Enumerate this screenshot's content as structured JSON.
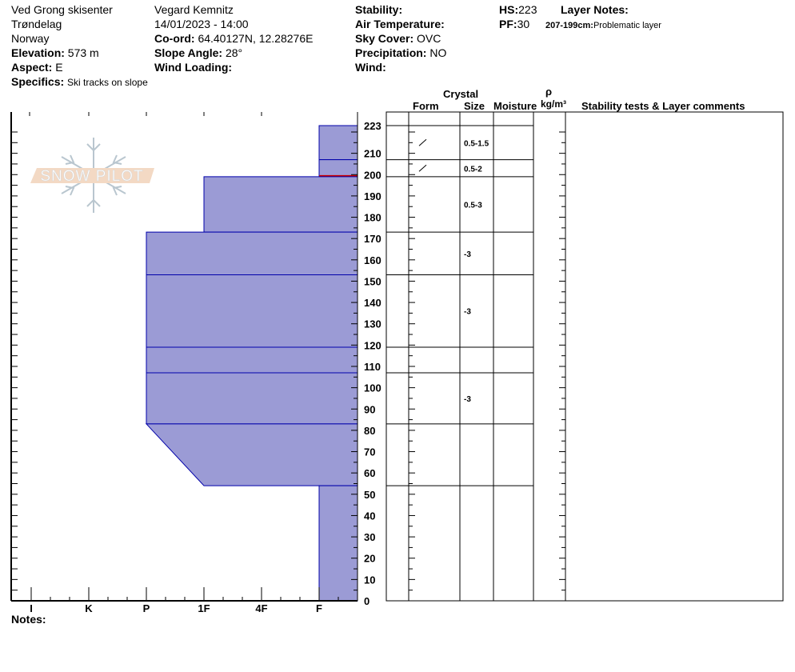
{
  "header": {
    "location": "Ved Grong skisenter",
    "region": "Trøndelag",
    "country": "Norway",
    "elevation_label": "Elevation:",
    "elevation": "573 m",
    "aspect_label": "Aspect:",
    "aspect": "E",
    "specifics_label": "Specifics:",
    "specifics": "Ski tracks on slope",
    "observer": "Vegard Kemnitz",
    "datetime": "14/01/2023 - 14:00",
    "coord_label": "Co-ord:",
    "coord": "64.40127N, 12.28276E",
    "slope_label": "Slope Angle:",
    "slope": "28°",
    "wind_loading_label": "Wind Loading:",
    "stability_label": "Stability:",
    "air_temp_label": "Air Temperature:",
    "sky_label": "Sky Cover:",
    "sky": "OVC",
    "precip_label": "Precipitation:",
    "precip": "NO",
    "wind_label": "Wind:",
    "hs_label": "HS:",
    "hs": "223",
    "pf_label": "PF:",
    "pf": "30",
    "layer_notes_label": "Layer Notes:",
    "layer_note_range": "207-199cm:",
    "layer_note_text": "Problematic layer"
  },
  "table_headers": {
    "crystal": "Crystal",
    "form": "Form",
    "size": "Size",
    "moisture": "Moisture",
    "rho": "ρ",
    "density_unit": "kg/m³",
    "comments": "Stability tests & Layer comments"
  },
  "notes_label": "Notes:",
  "logo_text": "SNOW PILOT",
  "colors": {
    "layer_fill": "#9b9bd5",
    "layer_edge": "#0000aa",
    "problem_layer": "#cc0000"
  },
  "chart_data": {
    "type": "bar",
    "orientation": "horizontal",
    "ylabel": "",
    "ylim": [
      0,
      223
    ],
    "y_ticks": [
      "0",
      "10",
      "20",
      "30",
      "40",
      "50",
      "60",
      "70",
      "80",
      "90",
      "100",
      "110",
      "120",
      "130",
      "140",
      "150",
      "160",
      "170",
      "180",
      "190",
      "200",
      "210",
      "223"
    ],
    "hardness_scale": [
      "I",
      "K",
      "P",
      "1F",
      "4F",
      "F"
    ],
    "layers": [
      {
        "top": 223,
        "bottom": 207,
        "hardness_top": "F",
        "hardness_bottom": "F",
        "form_icon": "decomposing-fragments-icon",
        "size": "0.5-1.5"
      },
      {
        "top": 207,
        "bottom": 199,
        "hardness_top": "F",
        "hardness_bottom": "F",
        "form_icon": "decomposing-fragments-icon",
        "size": "0.5-2",
        "problem": true
      },
      {
        "top": 199,
        "bottom": 173,
        "hardness_top": "1F",
        "hardness_bottom": "1F",
        "size": "0.5-3"
      },
      {
        "top": 173,
        "bottom": 153,
        "hardness_top": "P",
        "hardness_bottom": "P",
        "size": "-3"
      },
      {
        "top": 153,
        "bottom": 119,
        "hardness_top": "P",
        "hardness_bottom": "P",
        "size": "-3"
      },
      {
        "top": 119,
        "bottom": 107,
        "hardness_top": "P",
        "hardness_bottom": "P",
        "size": ""
      },
      {
        "top": 107,
        "bottom": 83,
        "hardness_top": "P",
        "hardness_bottom": "P",
        "size": "-3"
      },
      {
        "top": 83,
        "bottom": 54,
        "hardness_top": "P",
        "hardness_bottom": "1F",
        "size": ""
      },
      {
        "top": 54,
        "bottom": 0,
        "hardness_top": "F",
        "hardness_bottom": "F",
        "size": ""
      }
    ]
  }
}
